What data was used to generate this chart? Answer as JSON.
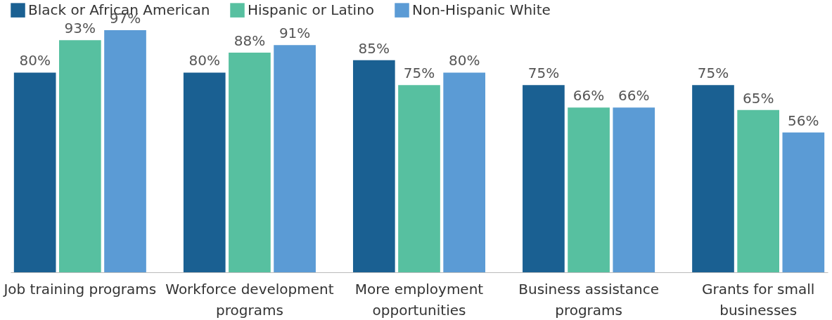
{
  "chart_data": {
    "type": "bar",
    "categories": [
      "Job training programs",
      "Workforce development programs",
      "More employment opportunities",
      "Business assistance programs",
      "Grants for small businesses"
    ],
    "series": [
      {
        "name": "Black or African American",
        "color": "#1a6092",
        "values": [
          80,
          80,
          85,
          75,
          75
        ],
        "value_labels": [
          "80%",
          "80%",
          "85%",
          "75%",
          "75%"
        ]
      },
      {
        "name": "Hispanic or Latino",
        "color": "#57c0a0",
        "values": [
          93,
          88,
          75,
          66,
          65
        ],
        "value_labels": [
          "93%",
          "88%",
          "75%",
          "66%",
          "65%"
        ]
      },
      {
        "name": "Non-Hispanic White",
        "color": "#5b9bd5",
        "values": [
          97,
          91,
          80,
          66,
          56
        ],
        "value_labels": [
          "97%",
          "91%",
          "80%",
          "66%",
          "56%"
        ]
      }
    ],
    "legend": "top",
    "grid": false
  }
}
